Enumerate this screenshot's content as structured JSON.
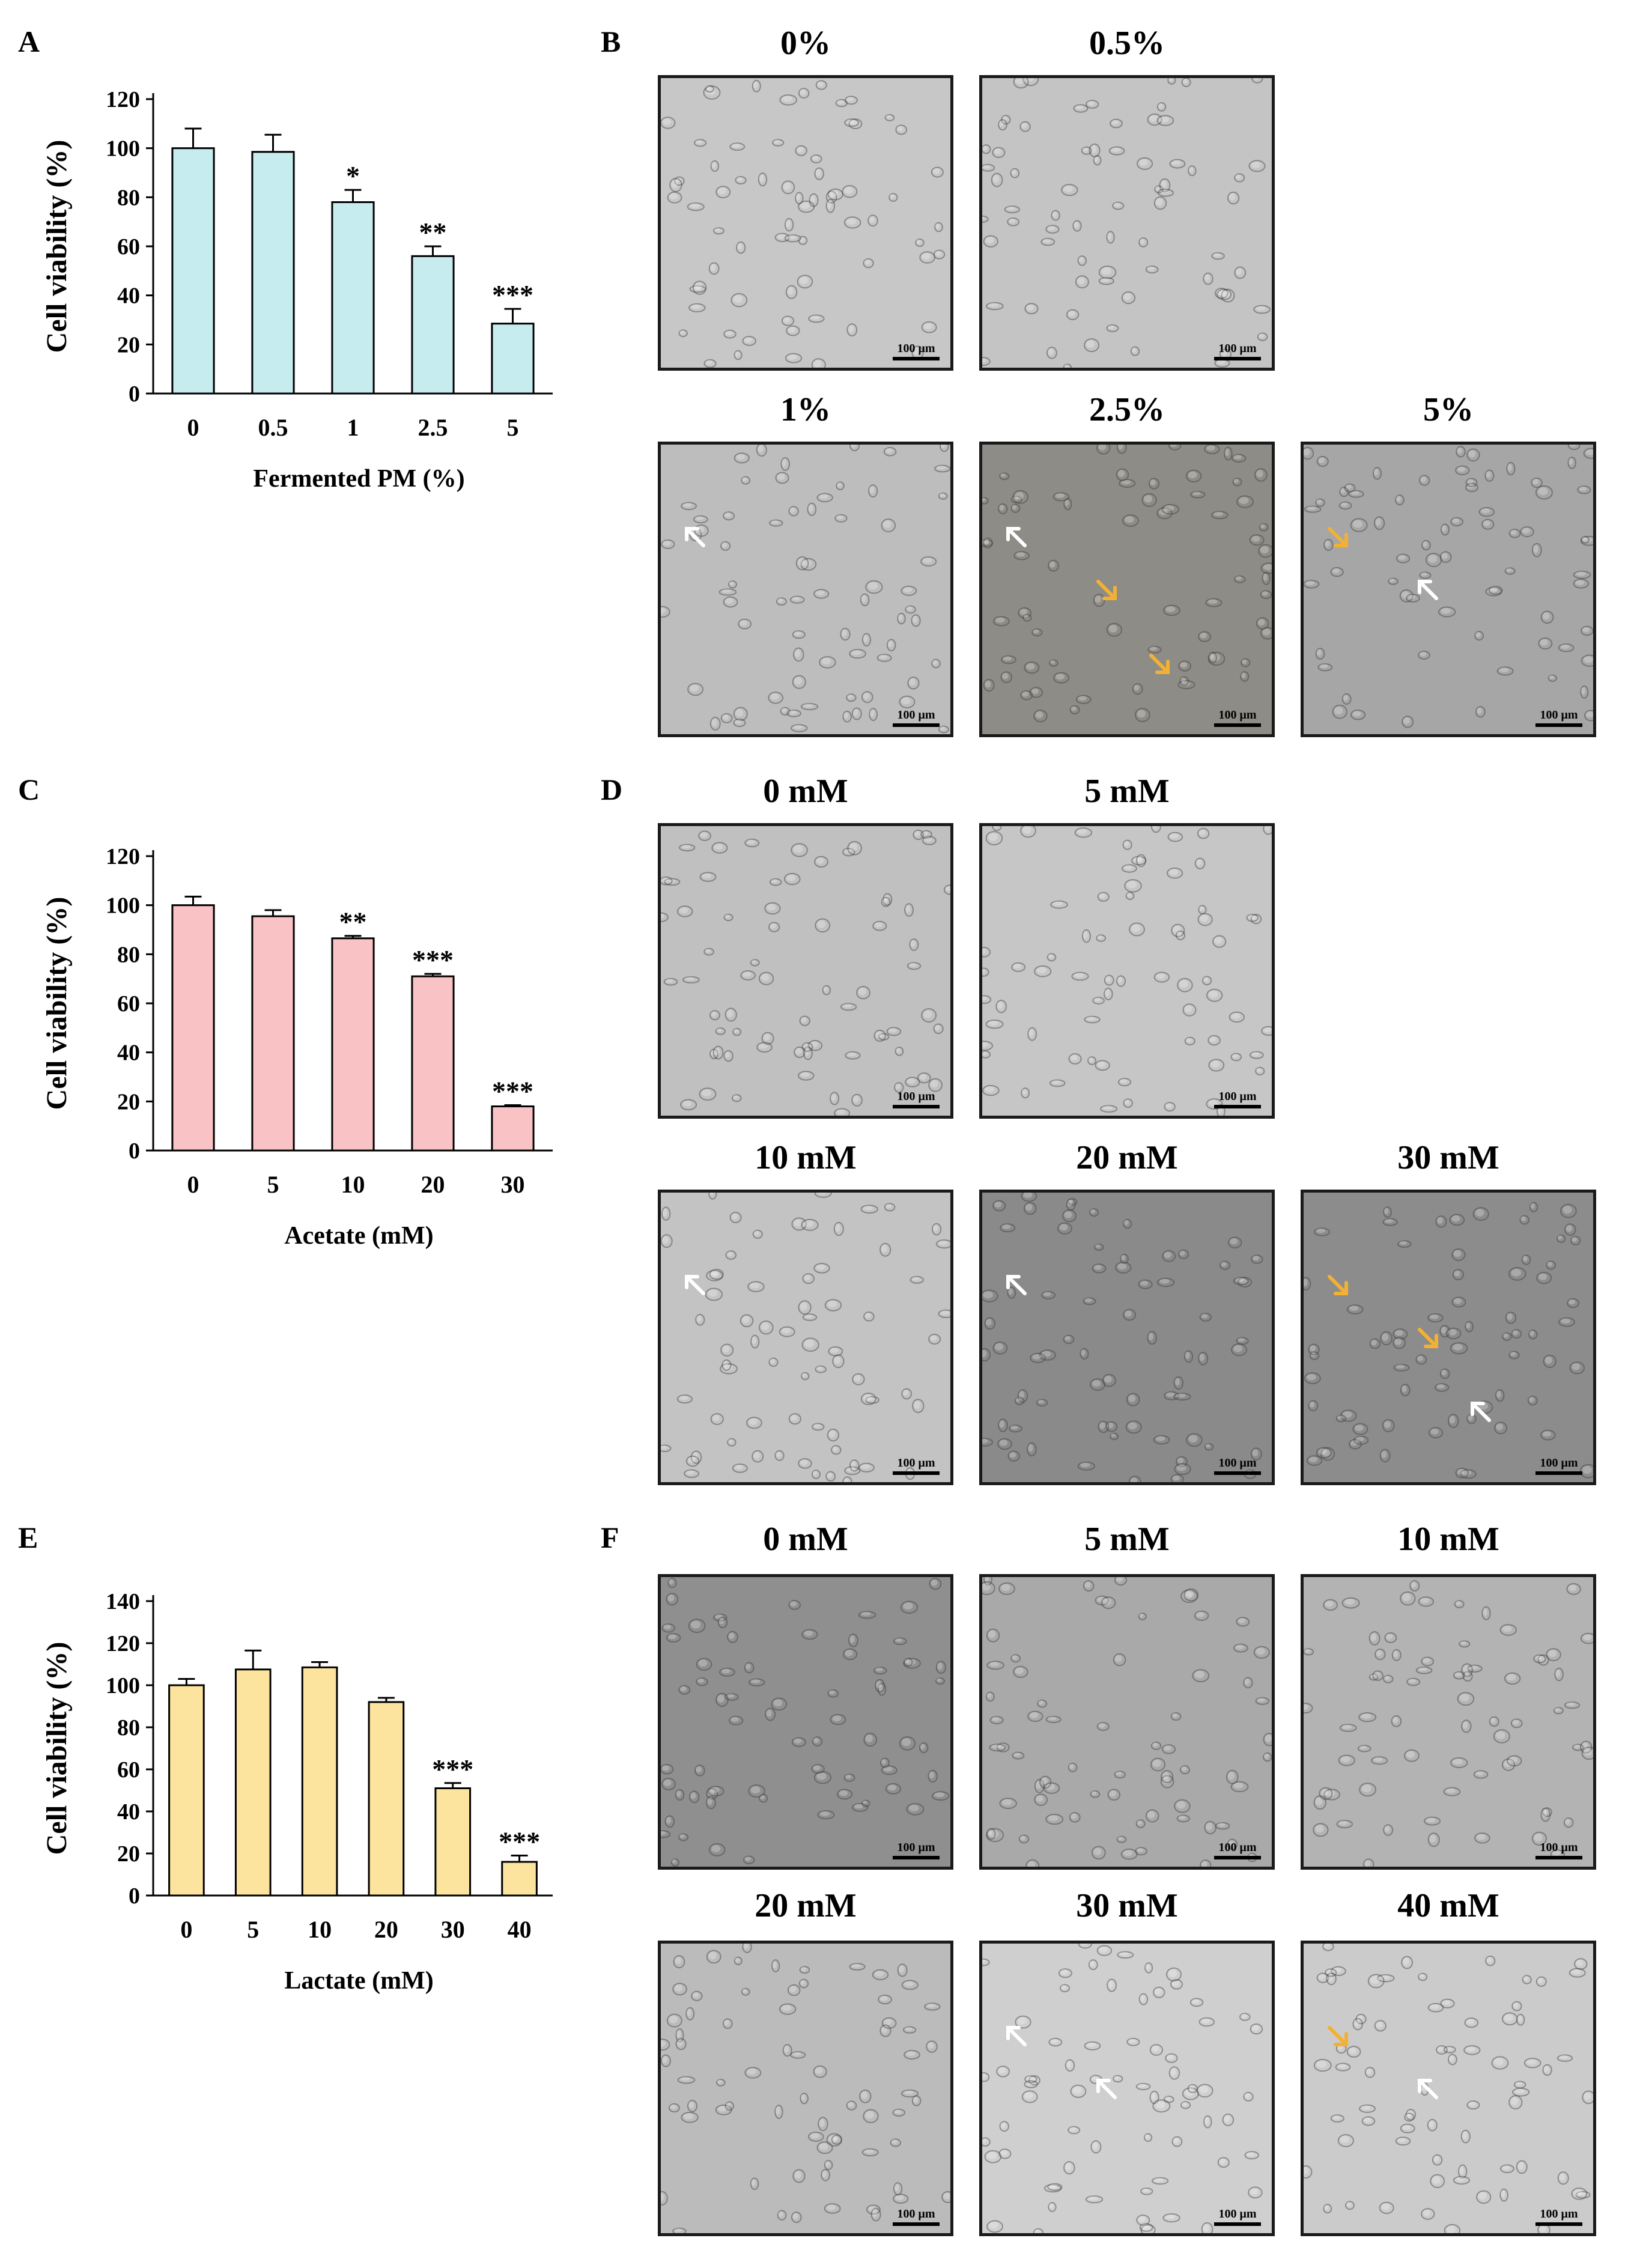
{
  "panels": {
    "A": "A",
    "B": "B",
    "C": "C",
    "D": "D",
    "E": "E",
    "F": "F"
  },
  "colors": {
    "bar_A": "#c6ecef",
    "bar_C": "#f9c3c5",
    "bar_E": "#fde49e",
    "arrow_white": "#ffffff",
    "arrow_yellow": "#f2b134"
  },
  "chart_data": [
    {
      "id": "A",
      "type": "bar",
      "categories": [
        "0",
        "0.5",
        "1",
        "2.5",
        "5"
      ],
      "values": [
        100,
        98.5,
        78,
        56,
        28.5
      ],
      "errors": [
        8,
        7,
        5,
        4,
        6
      ],
      "significance": [
        "",
        "",
        "*",
        "**",
        "***"
      ],
      "xlabel": "Fermented PM (%)",
      "ylabel": "Cell viability (%)",
      "ylim": [
        0,
        120
      ],
      "yticks": [
        0,
        20,
        40,
        60,
        80,
        100,
        120
      ],
      "grid": false,
      "color": "#c6ecef"
    },
    {
      "id": "C",
      "type": "bar",
      "categories": [
        "0",
        "5",
        "10",
        "20",
        "30"
      ],
      "values": [
        100,
        95.5,
        86.5,
        71,
        18
      ],
      "errors": [
        3.5,
        2.5,
        1,
        1,
        0.5
      ],
      "significance": [
        "",
        "",
        "**",
        "***",
        "***"
      ],
      "xlabel": "Acetate (mM)",
      "ylabel": "Cell viability (%)",
      "ylim": [
        0,
        120
      ],
      "yticks": [
        0,
        20,
        40,
        60,
        80,
        100,
        120
      ],
      "grid": false,
      "color": "#f9c3c5"
    },
    {
      "id": "E",
      "type": "bar",
      "categories": [
        "0",
        "5",
        "10",
        "20",
        "30",
        "40"
      ],
      "values": [
        100,
        107.5,
        108.5,
        92,
        51,
        16
      ],
      "errors": [
        3,
        9,
        2.5,
        2,
        2.5,
        3
      ],
      "significance": [
        "",
        "",
        "",
        "",
        "***",
        "***"
      ],
      "xlabel": "Lactate (mM)",
      "ylabel": "Cell viability (%)",
      "ylim": [
        0,
        140
      ],
      "yticks": [
        0,
        20,
        40,
        60,
        80,
        100,
        120,
        140
      ],
      "grid": false,
      "color": "#fde49e"
    }
  ],
  "micrographs": {
    "B": [
      {
        "label": "0%",
        "scale": "100 μm",
        "tone": "#c7c7c7",
        "arrows": []
      },
      {
        "label": "0.5%",
        "scale": "100 μm",
        "tone": "#c4c4c4",
        "arrows": []
      },
      {
        "label": "1%",
        "scale": "100 μm",
        "tone": "#bdbdbd",
        "arrows": [
          "white"
        ]
      },
      {
        "label": "2.5%",
        "scale": "100 μm",
        "tone": "#8e8c86",
        "arrows": [
          "white",
          "yellow",
          "yellow"
        ]
      },
      {
        "label": "5%",
        "scale": "100 μm",
        "tone": "#a6a6a6",
        "arrows": [
          "yellow",
          "white"
        ]
      }
    ],
    "D": [
      {
        "label": "0 mM",
        "scale": "100 μm",
        "tone": "#c0c0c0",
        "arrows": []
      },
      {
        "label": "5 mM",
        "scale": "100 μm",
        "tone": "#c6c6c6",
        "arrows": []
      },
      {
        "label": "10 mM",
        "scale": "100 μm",
        "tone": "#c3c3c3",
        "arrows": [
          "white"
        ]
      },
      {
        "label": "20 mM",
        "scale": "100 μm",
        "tone": "#8a8a8a",
        "arrows": [
          "white"
        ]
      },
      {
        "label": "30 mM",
        "scale": "100 μm",
        "tone": "#8c8c8c",
        "arrows": [
          "yellow",
          "yellow",
          "white"
        ]
      }
    ],
    "F": [
      {
        "label": "0 mM",
        "scale": "100 μm",
        "tone": "#8f8f8f",
        "arrows": []
      },
      {
        "label": "5 mM",
        "scale": "100 μm",
        "tone": "#a9a9a9",
        "arrows": []
      },
      {
        "label": "10 mM",
        "scale": "100 μm",
        "tone": "#b3b3b3",
        "arrows": []
      },
      {
        "label": "20 mM",
        "scale": "100 μm",
        "tone": "#bbbbbb",
        "arrows": []
      },
      {
        "label": "30 mM",
        "scale": "100 μm",
        "tone": "#cfcfcf",
        "arrows": [
          "white",
          "white"
        ]
      },
      {
        "label": "40 mM",
        "scale": "100 μm",
        "tone": "#cbcbcb",
        "arrows": [
          "yellow",
          "white"
        ]
      }
    ]
  }
}
